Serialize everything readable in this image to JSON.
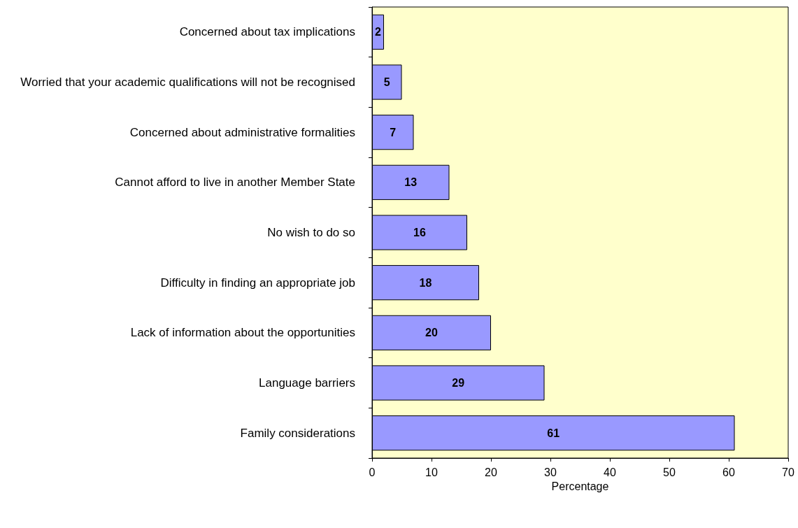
{
  "chart_data": {
    "type": "bar",
    "orientation": "horizontal",
    "xlabel": "Percentage",
    "categories": [
      "Concerned about tax implications",
      "Worried that your academic qualifications will not be recognised",
      "Concerned about administrative formalities",
      "Cannot afford to live in another Member State",
      "No wish to do so",
      "Difficulty in finding an appropriate job",
      "Lack of information about the opportunities",
      "Language barriers",
      "Family considerations"
    ],
    "values": [
      2,
      5,
      7,
      13,
      16,
      18,
      20,
      29,
      61
    ],
    "color": "#9999ff",
    "xlim": [
      0,
      70
    ],
    "xticks": [
      0,
      10,
      20,
      30,
      40,
      50,
      60,
      70
    ],
    "grid": false,
    "data_labels": true
  }
}
